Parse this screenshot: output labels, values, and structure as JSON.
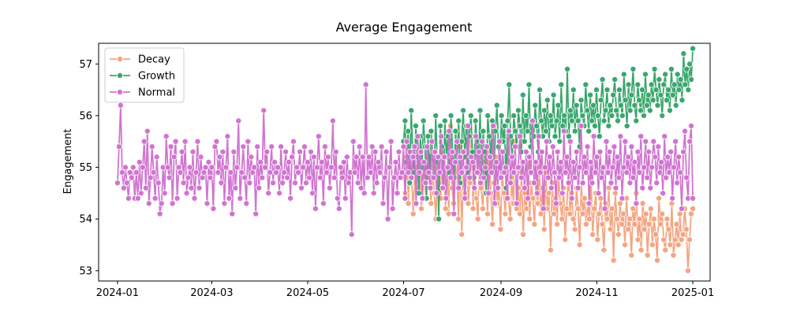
{
  "chart_data": {
    "type": "line",
    "title": "Average Engagement",
    "xlabel": "",
    "ylabel": "Engagement",
    "x_start": "2024-01-01",
    "x_end": "2025-01-01",
    "xlim": [
      "2023-12-20",
      "2025-01-12"
    ],
    "ylim": [
      52.8,
      57.4
    ],
    "x_ticks": [
      {
        "date": "2024-01-01",
        "label": "2024-01"
      },
      {
        "date": "2024-03-01",
        "label": "2024-03"
      },
      {
        "date": "2024-05-01",
        "label": "2024-05"
      },
      {
        "date": "2024-07-01",
        "label": "2024-07"
      },
      {
        "date": "2024-09-01",
        "label": "2024-09"
      },
      {
        "date": "2024-11-01",
        "label": "2024-11"
      },
      {
        "date": "2025-01-01",
        "label": "2025-01"
      }
    ],
    "y_ticks": [
      53,
      54,
      55,
      56,
      57
    ],
    "grid": false,
    "legend": {
      "position": "top-left"
    },
    "series": [
      {
        "name": "Decay",
        "color": "#f4a582",
        "x_start": "2024-07-01",
        "x_end": "2025-01-01",
        "values": [
          54.9,
          54.5,
          55.2,
          54.3,
          55.5,
          54.8,
          54.1,
          55.0,
          54.6,
          55.3,
          54.9,
          54.2,
          55.1,
          54.7,
          54.4,
          55.6,
          54.8,
          54.3,
          55.0,
          54.5,
          54.0,
          55.2,
          54.7,
          54.4,
          55.4,
          54.9,
          54.2,
          55.0,
          54.1,
          55.8,
          54.6,
          54.3,
          55.1,
          54.8,
          54.0,
          55.4,
          53.7,
          54.9,
          54.5,
          55.2,
          54.3,
          54.7,
          55.6,
          54.2,
          54.9,
          54.4,
          54.0,
          55.3,
          54.6,
          54.2,
          55.1,
          54.8,
          54.1,
          55.4,
          54.5,
          53.9,
          54.7,
          55.2,
          54.3,
          54.6,
          53.8,
          55.0,
          54.5,
          54.1,
          55.3,
          54.4,
          54.0,
          54.8,
          54.3,
          55.5,
          54.2,
          54.6,
          54.1,
          54.9,
          53.7,
          54.5,
          54.2,
          55.2,
          54.0,
          54.7,
          54.4,
          53.9,
          54.8,
          54.3,
          55.0,
          54.1,
          54.6,
          53.8,
          54.9,
          54.2,
          54.5,
          53.4,
          54.7,
          54.1,
          54.4,
          53.9,
          54.8,
          54.3,
          54.0,
          54.6,
          53.6,
          54.2,
          54.9,
          54.1,
          54.5,
          54.0,
          53.8,
          54.6,
          54.2,
          53.5,
          54.7,
          54.1,
          54.4,
          53.9,
          54.3,
          54.0,
          54.8,
          53.7,
          54.2,
          54.5,
          53.6,
          54.1,
          54.4,
          53.9,
          53.4,
          54.3,
          54.0,
          54.6,
          53.8,
          54.2,
          53.2,
          54.5,
          54.0,
          53.7,
          54.3,
          53.9,
          54.1,
          53.5,
          54.4,
          53.8,
          54.0,
          53.3,
          54.2,
          53.9,
          54.5,
          53.6,
          54.0,
          53.4,
          54.3,
          53.8,
          54.1,
          53.3,
          53.9,
          54.2,
          53.5,
          54.0,
          53.7,
          53.2,
          54.4,
          53.9,
          54.1,
          53.6,
          53.4,
          54.0,
          53.8,
          53.5,
          54.3,
          53.3,
          53.6,
          53.9,
          53.5,
          54.1,
          53.6,
          53.7,
          54.2,
          53.8,
          53.0,
          53.6,
          54.1,
          54.2
        ]
      },
      {
        "name": "Growth",
        "color": "#3aa76d",
        "x_start": "2024-07-01",
        "x_end": "2025-01-01",
        "values": [
          55.5,
          55.9,
          55.1,
          55.7,
          54.7,
          56.1,
          55.3,
          54.9,
          55.8,
          55.2,
          54.5,
          55.6,
          55.0,
          55.9,
          55.4,
          54.4,
          55.6,
          54.9,
          55.7,
          55.3,
          54.8,
          56.0,
          55.1,
          54.0,
          55.8,
          55.4,
          54.6,
          55.9,
          55.2,
          55.6,
          54.9,
          56.0,
          55.3,
          54.8,
          55.7,
          55.1,
          55.9,
          54.7,
          55.5,
          56.1,
          55.2,
          55.8,
          54.9,
          55.6,
          56.0,
          55.3,
          54.8,
          55.9,
          55.5,
          55.1,
          56.1,
          54.8,
          55.7,
          55.3,
          54.5,
          56.0,
          55.6,
          55.2,
          55.9,
          54.9,
          55.7,
          56.2,
          55.4,
          55.0,
          56.0,
          55.5,
          55.8,
          54.6,
          55.9,
          56.6,
          55.6,
          55.2,
          56.0,
          55.7,
          55.4,
          56.1,
          55.8,
          55.3,
          56.4,
          55.5,
          56.0,
          55.7,
          56.6,
          55.4,
          55.9,
          55.6,
          56.2,
          55.8,
          55.3,
          56.5,
          55.9,
          55.6,
          56.1,
          55.7,
          56.3,
          55.5,
          56.0,
          55.8,
          56.4,
          55.6,
          55.9,
          56.2,
          55.5,
          56.6,
          55.8,
          56.0,
          55.7,
          56.9,
          55.6,
          56.1,
          55.9,
          56.5,
          55.7,
          56.2,
          55.9,
          55.4,
          56.3,
          56.0,
          55.8,
          56.6,
          56.1,
          55.7,
          56.4,
          55.9,
          56.2,
          55.8,
          56.5,
          56.0,
          55.6,
          56.3,
          56.7,
          55.9,
          56.1,
          56.5,
          55.8,
          56.2,
          56.0,
          56.4,
          56.7,
          56.1,
          55.9,
          56.5,
          56.2,
          56.0,
          56.8,
          56.3,
          55.8,
          56.6,
          56.1,
          56.4,
          56.9,
          56.2,
          55.9,
          56.6,
          56.3,
          56.1,
          56.5,
          56.0,
          56.8,
          56.2,
          56.4,
          56.1,
          56.6,
          56.3,
          56.9,
          56.5,
          56.2,
          56.7,
          56.4,
          56.0,
          56.6,
          56.8,
          56.3,
          56.5,
          56.1,
          56.9,
          56.4,
          56.6,
          56.2,
          56.8,
          56.5,
          56.7,
          56.3,
          57.2,
          56.6,
          56.9,
          56.5,
          57.0,
          56.7,
          57.3
        ]
      },
      {
        "name": "Normal",
        "color": "#d174d1",
        "x_start": "2024-01-01",
        "x_end": "2025-01-01",
        "values": [
          54.7,
          55.4,
          56.2,
          54.9,
          54.6,
          55.0,
          54.7,
          54.4,
          54.9,
          54.8,
          55.0,
          54.4,
          54.9,
          54.4,
          55.1,
          54.5,
          55.0,
          55.5,
          54.6,
          55.7,
          54.3,
          54.8,
          55.4,
          54.9,
          54.4,
          55.2,
          54.7,
          54.1,
          54.3,
          55.0,
          54.5,
          55.6,
          55.0,
          54.8,
          55.4,
          54.3,
          55.2,
          55.5,
          54.4,
          55.0,
          54.9,
          55.3,
          54.7,
          55.5,
          54.5,
          54.8,
          55.0,
          54.6,
          55.3,
          54.4,
          54.9,
          55.5,
          54.6,
          55.2,
          54.8,
          54.9,
          55.0,
          54.3,
          55.1,
          54.8,
          55.0,
          54.2,
          55.4,
          55.5,
          54.9,
          55.2,
          54.7,
          55.3,
          54.3,
          55.0,
          55.6,
          54.4,
          54.9,
          54.1,
          55.3,
          54.6,
          55.0,
          55.9,
          54.4,
          54.9,
          55.4,
          54.8,
          54.3,
          55.5,
          54.7,
          55.2,
          54.9,
          55.0,
          54.1,
          55.4,
          54.6,
          55.1,
          54.8,
          56.1,
          55.0,
          55.3,
          54.5,
          54.9,
          55.4,
          54.7,
          55.1,
          54.9,
          55.0,
          54.5,
          55.4,
          54.7,
          54.9,
          55.3,
          54.8,
          55.1,
          54.4,
          55.2,
          55.5,
          54.7,
          55.0,
          54.9,
          55.3,
          54.6,
          55.0,
          55.4,
          54.7,
          55.1,
          54.8,
          55.3,
          54.5,
          55.2,
          54.2,
          55.0,
          55.6,
          54.8,
          55.1,
          54.3,
          55.4,
          54.9,
          55.2,
          54.6,
          55.0,
          55.9,
          54.8,
          55.3,
          54.4,
          54.2,
          55.0,
          54.8,
          55.1,
          54.4,
          55.2,
          54.7,
          54.9,
          53.7,
          55.5,
          54.9,
          55.2,
          54.7,
          55.4,
          54.6,
          55.2,
          54.5,
          56.6,
          54.8,
          55.2,
          54.9,
          55.4,
          54.5,
          55.3,
          54.7,
          55.1,
          54.9,
          55.4,
          54.3,
          54.8,
          55.3,
          54.0,
          55.0,
          55.5,
          54.2,
          54.8,
          55.1,
          54.5,
          55.3,
          54.8,
          54.9,
          55.4,
          54.4,
          55.5,
          54.9,
          55.3,
          54.8,
          55.2,
          55.4,
          54.3,
          55.6,
          54.9,
          55.3,
          54.4,
          55.1,
          54.7,
          55.4,
          54.9,
          54.6,
          55.5,
          54.8,
          55.3,
          54.5,
          55.2,
          54.9,
          55.6,
          54.6,
          55.2,
          54.4,
          55.0,
          55.7,
          54.8,
          55.3,
          54.1,
          55.1,
          55.5,
          54.6,
          55.2,
          54.9,
          55.3,
          54.4,
          55.0,
          55.8,
          54.8,
          55.2,
          55.1,
          54.6,
          55.6,
          54.9,
          55.3,
          54.7,
          55.5,
          54.8,
          55.0,
          55.4,
          54.5,
          55.2,
          54.9,
          55.8,
          54.3,
          55.1,
          54.6,
          55.5,
          54.8,
          55.3,
          54.9,
          55.0,
          54.4,
          55.7,
          54.7,
          55.2,
          54.9,
          55.4,
          54.3,
          55.0,
          55.6,
          54.8,
          55.1,
          54.6,
          55.3,
          54.4,
          55.2,
          54.9,
          55.9,
          54.7,
          55.1,
          54.5,
          55.6,
          54.9,
          55.3,
          54.2,
          55.0,
          55.5,
          54.8,
          55.2,
          54.6,
          55.4,
          54.9,
          54.3,
          55.3,
          54.8,
          55.1,
          54.5,
          55.7,
          54.9,
          55.2,
          54.7,
          55.5,
          54.4,
          55.1,
          54.8,
          55.3,
          54.6,
          55.0,
          55.8,
          54.7,
          55.2,
          54.9,
          55.4,
          54.3,
          55.1,
          54.7,
          55.6,
          54.9,
          55.2,
          54.5,
          55.3,
          54.8,
          55.0,
          54.2,
          55.5,
          54.9,
          55.3,
          54.7,
          55.0,
          55.4,
          54.6,
          55.2,
          54.8,
          55.6,
          54.4,
          55.0,
          55.5,
          54.9,
          55.2,
          54.7,
          55.4,
          54.8,
          55.1,
          54.3,
          55.3,
          54.9,
          55.6,
          54.6,
          55.0,
          55.5,
          54.8,
          55.3,
          54.6,
          55.0,
          55.5,
          55.2,
          54.7,
          55.4,
          54.9,
          55.1,
          54.5,
          55.6,
          54.8,
          55.2,
          54.9,
          55.3,
          54.4,
          55.0,
          55.5,
          54.7,
          55.2,
          54.9,
          54.2,
          55.3,
          55.7,
          54.8,
          54.4,
          55.5,
          55.8,
          54.4
        ]
      }
    ]
  }
}
